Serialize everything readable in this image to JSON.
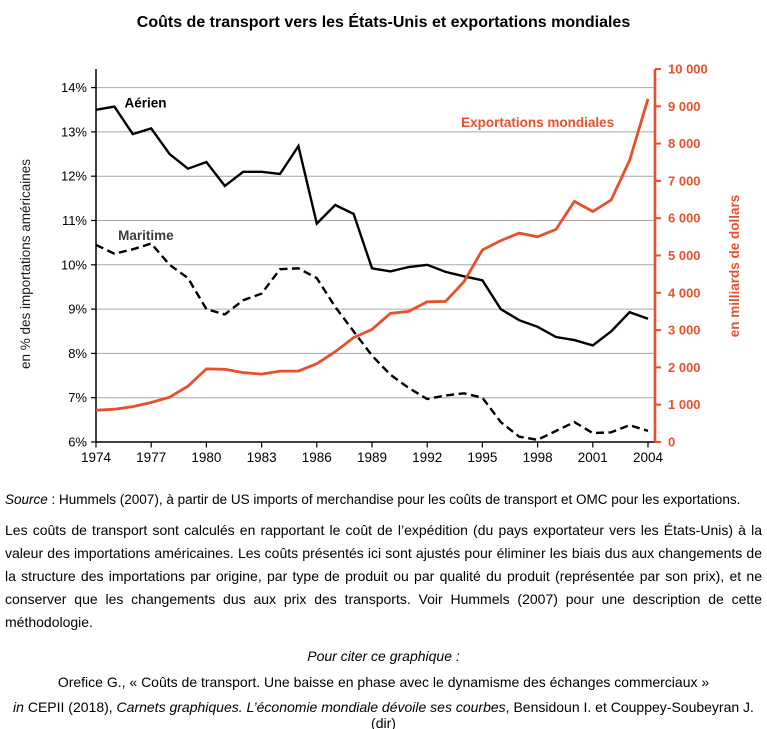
{
  "title": "Coûts de transport vers les États-Unis et exportations mondiales",
  "colors": {
    "accent_orange": "#e8502b",
    "series_black": "#000000",
    "maritime_label_gray": "#3d3d3d",
    "grid_gray": "#a8a8a8"
  },
  "chart_data": {
    "type": "line",
    "title": "Coûts de transport vers les États-Unis et exportations mondiales",
    "x": [
      1974,
      1975,
      1976,
      1977,
      1978,
      1979,
      1980,
      1981,
      1982,
      1983,
      1984,
      1985,
      1986,
      1987,
      1988,
      1989,
      1990,
      1991,
      1992,
      1993,
      1994,
      1995,
      1996,
      1997,
      1998,
      1999,
      2000,
      2001,
      2002,
      2003,
      2004
    ],
    "x_ticks": [
      1974,
      1977,
      1980,
      1983,
      1986,
      1989,
      1992,
      1995,
      1998,
      2001,
      2004
    ],
    "left_axis": {
      "label": "en % des importations américaines",
      "min": 6,
      "max": 14,
      "step": 1,
      "format": "percent",
      "grid": true
    },
    "right_axis": {
      "label": "en milliards de dollars",
      "min": 0,
      "max": 10000,
      "step": 1000,
      "format": "thousands"
    },
    "series": [
      {
        "name": "Aérien",
        "axis": "left",
        "style": "solid",
        "color": "#000000",
        "width": 2.4,
        "values": [
          13.5,
          13.57,
          12.95,
          13.08,
          12.5,
          12.17,
          12.32,
          11.78,
          12.1,
          12.1,
          12.05,
          12.68,
          10.93,
          11.35,
          11.15,
          9.92,
          9.85,
          9.95,
          10.0,
          9.84,
          9.74,
          9.65,
          9.0,
          8.75,
          8.6,
          8.37,
          8.3,
          8.18,
          8.5,
          8.93,
          8.78
        ]
      },
      {
        "name": "Maritime",
        "axis": "left",
        "style": "dashed",
        "color": "#000000",
        "width": 2.4,
        "values": [
          10.45,
          10.25,
          10.35,
          10.48,
          10.0,
          9.7,
          9.0,
          8.88,
          9.2,
          9.35,
          9.9,
          9.92,
          9.7,
          9.05,
          8.5,
          7.95,
          7.52,
          7.22,
          6.97,
          7.05,
          7.1,
          7.0,
          6.45,
          6.12,
          6.05,
          6.25,
          6.45,
          6.2,
          6.22,
          6.38,
          6.25
        ]
      },
      {
        "name": "Exportations mondiales",
        "axis": "right",
        "style": "solid",
        "color": "#e8502b",
        "width": 2.8,
        "values": [
          850,
          880,
          950,
          1060,
          1200,
          1500,
          1960,
          1950,
          1860,
          1820,
          1900,
          1900,
          2100,
          2420,
          2800,
          3020,
          3450,
          3500,
          3760,
          3770,
          4300,
          5150,
          5400,
          5600,
          5500,
          5700,
          6450,
          6180,
          6490,
          7550,
          9200
        ]
      }
    ],
    "annotations": [
      {
        "text": "Aérien",
        "x": 1975.55,
        "y": 13.55,
        "axis": "left",
        "anchor": "start",
        "color": "#000000"
      },
      {
        "text": "Maritime",
        "x": 1975.2,
        "y": 10.56,
        "axis": "left",
        "anchor": "start",
        "color": "#3d3d3d"
      },
      {
        "text": "Exportations mondiales",
        "x": 1998.0,
        "y": 8450,
        "axis": "right",
        "anchor": "middle",
        "color": "#e8502b"
      }
    ],
    "legend_position": "inline-labels",
    "grid": "horizontal-only"
  },
  "source_note": {
    "label": "Source",
    "rest": " : Hummels (2007), à partir de US imports of merchandise pour les coûts de transport et OMC pour les exportations."
  },
  "methodology": "Les coûts de transport sont calculés en rapportant le coût de l’expédition (du pays exportateur vers les États-Unis) à la valeur des importations américaines. Les coûts présentés ici sont ajustés pour éliminer les biais dus aux changements de la structure des importations par origine, par type de produit ou par qualité du produit (représentée par son prix), et ne conserver que les changements dus aux prix des transports. Voir Hummels (2007) pour une description de cette méthodologie.",
  "citation": {
    "heading": "Pour citer ce graphique :",
    "line1": "Orefice G., « Coûts de transport. Une baisse en phase avec le dynamisme des échanges commerciaux »",
    "line2": {
      "in_word": "in",
      "mid": " CEPII (2018), ",
      "book": "Carnets graphiques. L’économie mondiale dévoile ses courbes",
      "tail": ", Bensidoun I. et Couppey-Soubeyran J. (dir)"
    }
  }
}
